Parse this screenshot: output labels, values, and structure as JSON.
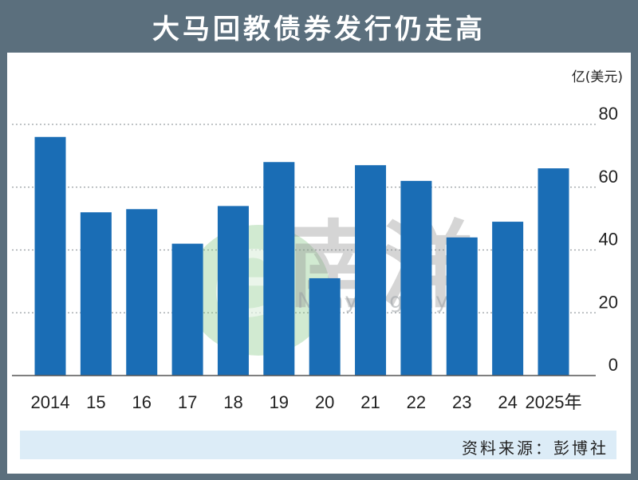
{
  "header": {
    "title": "大马回教债券发行仍走高"
  },
  "chart_data": {
    "type": "bar",
    "title": "大马回教债券发行仍走高",
    "categories": [
      "2014",
      "15",
      "16",
      "17",
      "18",
      "19",
      "20",
      "21",
      "22",
      "23",
      "24",
      "2025年"
    ],
    "values": [
      76,
      52,
      53,
      42,
      54,
      68,
      31,
      67,
      62,
      44,
      49,
      66
    ],
    "ylabel": "亿(美元)",
    "ylim": [
      0,
      80
    ],
    "yticks": [
      0,
      20,
      40,
      60,
      80
    ],
    "grid": true,
    "bar_color": "#1a6db5",
    "grid_color": "#9aa0a4"
  },
  "watermark": {
    "brand_text": "eNanyang.my",
    "brand_cn": "南洋",
    "logo_letter": "e"
  },
  "footer": {
    "source": "资料来源：彭博社"
  },
  "colors": {
    "frame": "#5b6f7d",
    "source_bar": "#dcecf7",
    "watermark_green": "#7cc47a"
  }
}
